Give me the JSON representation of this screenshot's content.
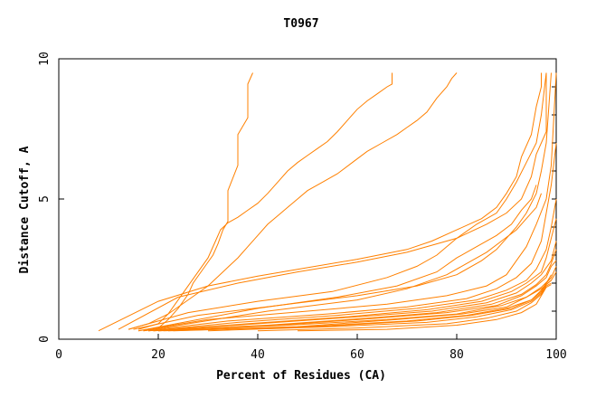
{
  "chart_data": {
    "type": "line",
    "title": "T0967",
    "xlabel": "Percent of Residues (CA)",
    "ylabel": "Distance Cutoff, A",
    "xlim": [
      0,
      100
    ],
    "ylim": [
      0,
      10
    ],
    "x_ticks": [
      0,
      20,
      40,
      60,
      80,
      100
    ],
    "y_ticks": [
      0,
      5,
      10
    ],
    "grid": false,
    "line_color": "#ff8000",
    "series": [
      {
        "values": [
          [
            16,
            0.35
          ],
          [
            20,
            0.55
          ],
          [
            22,
            0.9
          ],
          [
            24,
            1.4
          ],
          [
            26,
            1.9
          ],
          [
            28,
            2.4
          ],
          [
            30,
            2.9
          ],
          [
            31.5,
            3.5
          ],
          [
            32.5,
            3.9
          ],
          [
            34,
            4.15
          ],
          [
            36,
            4.35
          ],
          [
            38,
            4.6
          ],
          [
            40,
            4.85
          ],
          [
            42,
            5.2
          ],
          [
            44,
            5.6
          ],
          [
            46,
            6.0
          ],
          [
            48,
            6.3
          ],
          [
            50,
            6.55
          ],
          [
            52,
            6.8
          ],
          [
            54,
            7.05
          ],
          [
            56,
            7.4
          ],
          [
            58,
            7.8
          ],
          [
            60,
            8.2
          ],
          [
            62,
            8.5
          ],
          [
            64,
            8.75
          ],
          [
            66,
            9.0
          ],
          [
            67,
            9.1
          ],
          [
            67,
            9.5
          ]
        ]
      },
      {
        "values": [
          [
            14,
            0.35
          ],
          [
            18,
            0.55
          ],
          [
            22,
            0.9
          ],
          [
            26,
            1.4
          ],
          [
            30,
            1.9
          ],
          [
            33,
            2.4
          ],
          [
            36,
            2.9
          ],
          [
            38,
            3.3
          ],
          [
            40,
            3.7
          ],
          [
            42,
            4.1
          ],
          [
            44,
            4.4
          ],
          [
            46,
            4.7
          ],
          [
            48,
            5.0
          ],
          [
            50,
            5.3
          ],
          [
            53,
            5.6
          ],
          [
            56,
            5.9
          ],
          [
            59,
            6.3
          ],
          [
            62,
            6.7
          ],
          [
            65,
            7.0
          ],
          [
            68,
            7.3
          ],
          [
            70,
            7.55
          ],
          [
            72,
            7.8
          ],
          [
            74,
            8.1
          ],
          [
            76,
            8.6
          ],
          [
            78,
            9.0
          ],
          [
            79,
            9.3
          ],
          [
            80,
            9.5
          ]
        ]
      },
      {
        "values": [
          [
            20,
            0.4
          ],
          [
            22,
            0.7
          ],
          [
            24,
            1.1
          ],
          [
            26,
            1.6
          ],
          [
            27,
            2.0
          ],
          [
            29,
            2.5
          ],
          [
            31,
            3.0
          ],
          [
            32,
            3.4
          ],
          [
            33,
            3.9
          ],
          [
            34,
            4.2
          ],
          [
            34,
            5.3
          ],
          [
            36,
            6.2
          ],
          [
            36,
            7.3
          ],
          [
            38,
            7.9
          ],
          [
            38,
            9.1
          ],
          [
            39,
            9.5
          ]
        ]
      },
      {
        "values": [
          [
            8,
            0.3
          ],
          [
            20,
            1.35
          ],
          [
            30,
            1.9
          ],
          [
            40,
            2.25
          ],
          [
            50,
            2.55
          ],
          [
            60,
            2.85
          ],
          [
            70,
            3.2
          ],
          [
            75,
            3.5
          ],
          [
            80,
            3.9
          ],
          [
            85,
            4.3
          ],
          [
            88,
            4.7
          ],
          [
            90,
            5.2
          ],
          [
            92,
            5.8
          ],
          [
            93,
            6.5
          ],
          [
            95,
            7.3
          ],
          [
            96,
            8.3
          ],
          [
            97,
            9.0
          ],
          [
            97,
            9.5
          ]
        ]
      },
      {
        "values": [
          [
            12,
            0.35
          ],
          [
            24,
            1.5
          ],
          [
            36,
            2.0
          ],
          [
            48,
            2.4
          ],
          [
            60,
            2.75
          ],
          [
            70,
            3.1
          ],
          [
            80,
            3.6
          ],
          [
            86,
            4.1
          ],
          [
            90,
            4.5
          ],
          [
            93,
            5.0
          ],
          [
            95,
            5.8
          ],
          [
            96,
            6.6
          ],
          [
            98,
            7.4
          ],
          [
            98,
            9.5
          ]
        ]
      },
      {
        "values": [
          [
            14,
            0.35
          ],
          [
            26,
            0.95
          ],
          [
            40,
            1.35
          ],
          [
            55,
            1.7
          ],
          [
            66,
            2.2
          ],
          [
            72,
            2.6
          ],
          [
            76,
            3.0
          ],
          [
            80,
            3.6
          ],
          [
            84,
            4.1
          ],
          [
            88,
            4.5
          ],
          [
            90,
            5.0
          ],
          [
            92,
            5.6
          ],
          [
            94,
            6.3
          ],
          [
            96,
            7.0
          ],
          [
            97,
            8.0
          ],
          [
            98,
            9.5
          ]
        ]
      },
      {
        "values": [
          [
            15,
            0.35
          ],
          [
            28,
            0.85
          ],
          [
            44,
            1.2
          ],
          [
            60,
            1.55
          ],
          [
            72,
            1.9
          ],
          [
            80,
            2.3
          ],
          [
            85,
            2.8
          ],
          [
            88,
            3.2
          ],
          [
            90,
            3.6
          ],
          [
            92,
            4.0
          ],
          [
            94,
            4.5
          ],
          [
            96,
            5.2
          ],
          [
            97,
            6.0
          ],
          [
            98,
            7.0
          ],
          [
            99,
            9.5
          ]
        ]
      },
      {
        "values": [
          [
            16,
            0.3
          ],
          [
            30,
            0.7
          ],
          [
            50,
            1.0
          ],
          [
            66,
            1.25
          ],
          [
            78,
            1.55
          ],
          [
            86,
            1.9
          ],
          [
            90,
            2.3
          ],
          [
            92,
            2.8
          ],
          [
            94,
            3.3
          ],
          [
            96,
            4.1
          ],
          [
            98,
            5.0
          ],
          [
            99,
            6.2
          ],
          [
            100,
            9.5
          ]
        ]
      },
      {
        "values": [
          [
            17,
            0.3
          ],
          [
            34,
            0.65
          ],
          [
            54,
            0.9
          ],
          [
            70,
            1.15
          ],
          [
            82,
            1.45
          ],
          [
            88,
            1.8
          ],
          [
            92,
            2.2
          ],
          [
            95,
            2.7
          ],
          [
            97,
            3.5
          ],
          [
            98,
            4.5
          ],
          [
            99,
            5.5
          ],
          [
            100,
            7.0
          ]
        ]
      },
      {
        "values": [
          [
            18,
            0.3
          ],
          [
            36,
            0.6
          ],
          [
            56,
            0.85
          ],
          [
            72,
            1.1
          ],
          [
            84,
            1.4
          ],
          [
            90,
            1.75
          ],
          [
            94,
            2.1
          ],
          [
            96,
            2.5
          ],
          [
            98,
            3.2
          ],
          [
            99,
            4.0
          ],
          [
            100,
            5.0
          ]
        ]
      },
      {
        "values": [
          [
            18,
            0.3
          ],
          [
            38,
            0.55
          ],
          [
            58,
            0.8
          ],
          [
            74,
            1.05
          ],
          [
            85,
            1.35
          ],
          [
            91,
            1.7
          ],
          [
            94,
            2.0
          ],
          [
            97,
            2.4
          ],
          [
            98,
            2.9
          ],
          [
            99,
            3.6
          ],
          [
            100,
            4.3
          ]
        ]
      },
      {
        "values": [
          [
            19,
            0.3
          ],
          [
            40,
            0.55
          ],
          [
            60,
            0.8
          ],
          [
            75,
            1.0
          ],
          [
            86,
            1.3
          ],
          [
            92,
            1.65
          ],
          [
            95,
            2.0
          ],
          [
            97,
            2.3
          ],
          [
            99,
            2.8
          ],
          [
            100,
            3.5
          ]
        ]
      },
      {
        "values": [
          [
            19,
            0.3
          ],
          [
            42,
            0.5
          ],
          [
            62,
            0.75
          ],
          [
            76,
            0.95
          ],
          [
            87,
            1.25
          ],
          [
            93,
            1.6
          ],
          [
            96,
            1.95
          ],
          [
            98,
            2.3
          ],
          [
            99,
            2.7
          ],
          [
            100,
            3.2
          ]
        ]
      },
      {
        "values": [
          [
            20,
            0.3
          ],
          [
            44,
            0.5
          ],
          [
            64,
            0.75
          ],
          [
            78,
            0.95
          ],
          [
            88,
            1.2
          ],
          [
            93,
            1.55
          ],
          [
            96,
            1.9
          ],
          [
            98,
            2.2
          ],
          [
            99,
            2.6
          ],
          [
            100,
            2.8
          ]
        ]
      },
      {
        "values": [
          [
            20,
            0.3
          ],
          [
            46,
            0.5
          ],
          [
            66,
            0.7
          ],
          [
            80,
            0.9
          ],
          [
            89,
            1.2
          ],
          [
            94,
            1.5
          ],
          [
            97,
            1.85
          ],
          [
            99,
            2.2
          ],
          [
            100,
            2.6
          ]
        ]
      },
      {
        "values": [
          [
            21,
            0.3
          ],
          [
            48,
            0.45
          ],
          [
            68,
            0.7
          ],
          [
            81,
            0.9
          ],
          [
            90,
            1.15
          ],
          [
            94,
            1.5
          ],
          [
            97,
            1.8
          ],
          [
            99,
            2.1
          ],
          [
            100,
            2.4
          ]
        ]
      },
      {
        "values": [
          [
            22,
            0.3
          ],
          [
            50,
            0.45
          ],
          [
            70,
            0.65
          ],
          [
            82,
            0.85
          ],
          [
            90,
            1.1
          ],
          [
            95,
            1.4
          ],
          [
            97,
            1.75
          ],
          [
            98,
            2.0
          ],
          [
            99,
            2.3
          ]
        ]
      },
      {
        "values": [
          [
            23,
            0.3
          ],
          [
            52,
            0.45
          ],
          [
            72,
            0.65
          ],
          [
            83,
            0.85
          ],
          [
            91,
            1.1
          ],
          [
            95,
            1.4
          ],
          [
            97,
            1.7
          ],
          [
            98,
            2.0
          ],
          [
            99,
            2.2
          ]
        ]
      },
      {
        "values": [
          [
            30,
            0.3
          ],
          [
            55,
            0.45
          ],
          [
            74,
            0.6
          ],
          [
            84,
            0.8
          ],
          [
            91,
            1.05
          ],
          [
            95,
            1.35
          ],
          [
            97,
            1.65
          ],
          [
            98,
            1.95
          ],
          [
            99,
            2.1
          ]
        ]
      },
      {
        "values": [
          [
            40,
            0.3
          ],
          [
            60,
            0.4
          ],
          [
            78,
            0.55
          ],
          [
            86,
            0.75
          ],
          [
            92,
            1.0
          ],
          [
            95,
            1.3
          ],
          [
            97,
            1.6
          ],
          [
            98,
            1.9
          ],
          [
            99,
            2.0
          ]
        ]
      },
      {
        "values": [
          [
            48,
            0.3
          ],
          [
            66,
            0.35
          ],
          [
            80,
            0.5
          ],
          [
            88,
            0.7
          ],
          [
            93,
            0.95
          ],
          [
            96,
            1.25
          ],
          [
            97,
            1.55
          ],
          [
            98,
            1.85
          ],
          [
            99,
            1.95
          ]
        ]
      },
      {
        "values": [
          [
            16,
            0.3
          ],
          [
            40,
            1.1
          ],
          [
            56,
            1.5
          ],
          [
            68,
            1.9
          ],
          [
            76,
            2.4
          ],
          [
            80,
            2.9
          ],
          [
            84,
            3.3
          ],
          [
            88,
            3.7
          ],
          [
            91,
            4.1
          ],
          [
            93,
            4.6
          ],
          [
            95,
            5.0
          ],
          [
            96,
            5.5
          ]
        ]
      },
      {
        "values": [
          [
            17,
            0.3
          ],
          [
            42,
            1.0
          ],
          [
            60,
            1.4
          ],
          [
            70,
            1.8
          ],
          [
            78,
            2.3
          ],
          [
            82,
            2.7
          ],
          [
            86,
            3.1
          ],
          [
            89,
            3.5
          ],
          [
            92,
            3.9
          ],
          [
            94,
            4.3
          ],
          [
            96,
            4.7
          ],
          [
            97,
            5.2
          ]
        ]
      }
    ]
  }
}
